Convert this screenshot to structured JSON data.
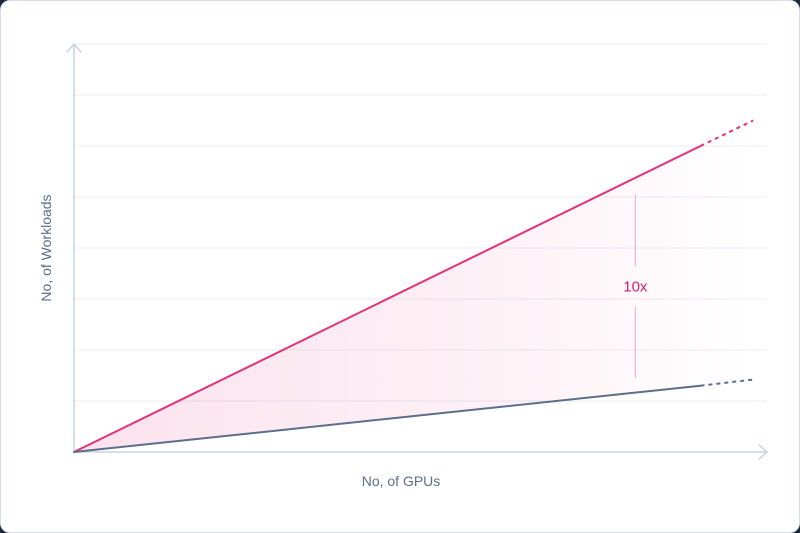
{
  "chart_data": {
    "type": "line",
    "xlabel": "No, of GPUs",
    "ylabel": "No, of Workloads",
    "xlim": [
      0,
      1
    ],
    "ylim": [
      0,
      8
    ],
    "grid": true,
    "gridlines_y": [
      1,
      2,
      3,
      4,
      5,
      6,
      7,
      8
    ],
    "series": [
      {
        "x": [
          0,
          0.904
        ],
        "y": [
          0,
          6
        ],
        "projected_x": [
          0.904,
          0.98
        ],
        "projected_y": [
          6,
          6.5
        ],
        "color": "#e5307a"
      },
      {
        "x": [
          0,
          0.904
        ],
        "y": [
          0,
          1.3
        ],
        "projected_x": [
          0.904,
          0.98
        ],
        "projected_y": [
          1.3,
          1.42
        ],
        "color": "#5b6f8c"
      }
    ],
    "annotations": [
      {
        "text": "10x",
        "x": 0.81,
        "y_from": 1.45,
        "y_to": 5.05,
        "color": "#d81b73"
      }
    ]
  },
  "colors": {
    "axis": "#c9d3df",
    "grid": "#e9edf2",
    "label": "#5b6f8c",
    "fill": "#e5307a"
  }
}
